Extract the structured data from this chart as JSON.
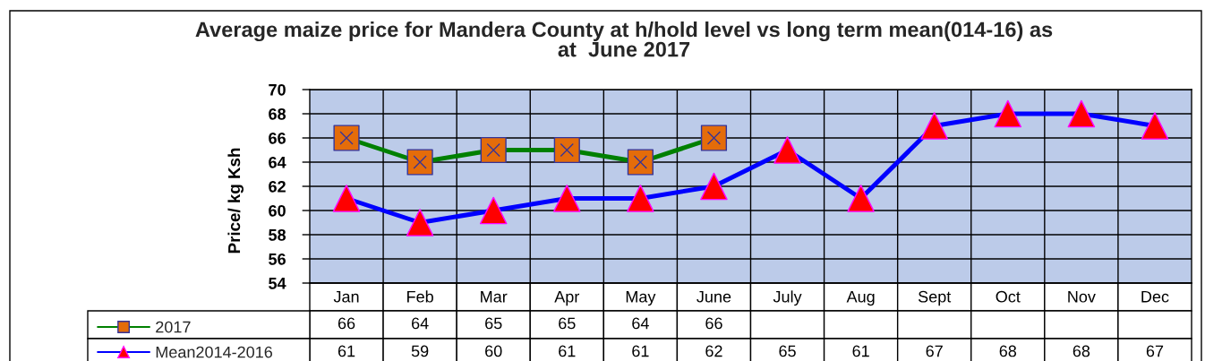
{
  "chart_data": {
    "type": "line",
    "title": "Average maize price for Mandera County at h/hold level vs long term mean(014-16) as\nat  June 2017",
    "ylabel": "Price/ kg Ksh",
    "categories": [
      "Jan",
      "Feb",
      "Mar",
      "Apr",
      "May",
      "June",
      "July",
      "Aug",
      "Sept",
      "Oct",
      "Nov",
      "Dec"
    ],
    "series": [
      {
        "name": "2017",
        "color": "#008000",
        "marker": "square",
        "colors": [
          "#e46c0a",
          "#e46c0a",
          "#e46c0a",
          "#e46c0a",
          "#e46c0a",
          "#e46c0a",
          null,
          null,
          null,
          null,
          null,
          null
        ],
        "values": [
          66,
          64,
          65,
          65,
          64,
          66,
          null,
          null,
          null,
          null,
          null,
          null
        ]
      },
      {
        "name": "Mean2014-2016",
        "color": "#0000ff",
        "marker": "triangle",
        "colors": [
          "#ff0000",
          "#ff0000",
          "#ff0000",
          "#ff0000",
          "#ff0000",
          "#ff0000",
          "#ff0000",
          "#ff0000",
          "#ff0000",
          "#ff0000",
          "#ff0000",
          "#ff0000"
        ],
        "values": [
          61,
          59,
          60,
          61,
          61,
          62,
          65,
          61,
          67,
          68,
          68,
          67
        ]
      }
    ],
    "ylim": [
      54,
      70
    ],
    "yticks": [
      54,
      56,
      58,
      60,
      62,
      64,
      66,
      68,
      70
    ],
    "grid": true,
    "legend": "bottom left",
    "data_labels": true
  }
}
